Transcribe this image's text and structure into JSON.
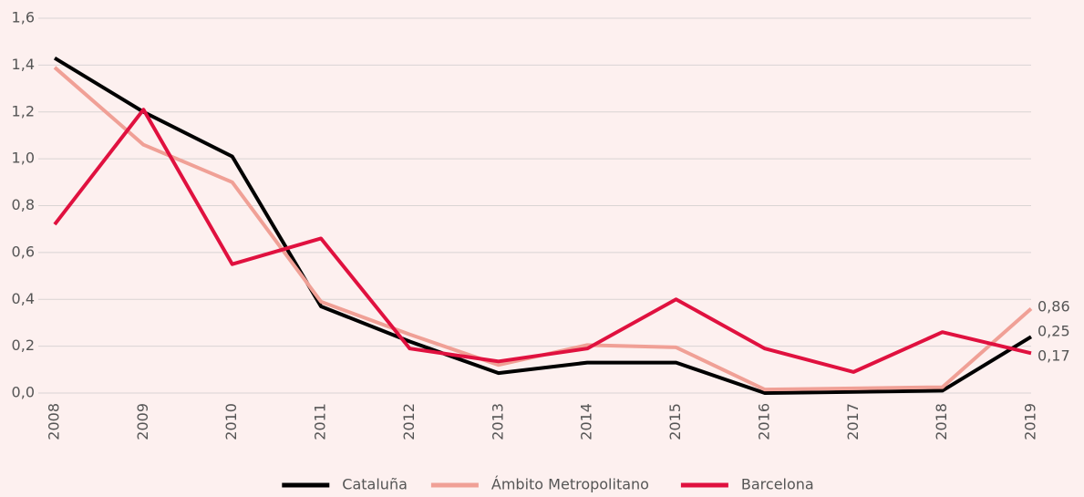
{
  "chart_data": {
    "type": "line",
    "categories": [
      "2008",
      "2009",
      "2010",
      "2011",
      "2012",
      "2013",
      "2014",
      "2015",
      "2016",
      "2017",
      "2018",
      "2019"
    ],
    "series": [
      {
        "name": "Cataluña",
        "color": "#000000",
        "values": [
          1.43,
          1.2,
          1.01,
          0.37,
          0.22,
          0.085,
          0.13,
          0.13,
          0.0,
          0.005,
          0.01,
          0.24
        ]
      },
      {
        "name": "Ámbito Metropolitano",
        "color": "#f0a096",
        "values": [
          1.39,
          1.06,
          0.9,
          0.39,
          0.25,
          0.12,
          0.205,
          0.195,
          0.015,
          0.02,
          0.025,
          0.36
        ]
      },
      {
        "name": "Barcelona",
        "color": "#e0113f",
        "values": [
          0.72,
          1.21,
          0.55,
          0.66,
          0.19,
          0.135,
          0.19,
          0.4,
          0.19,
          0.09,
          0.26,
          0.17
        ]
      }
    ],
    "annotations": [
      "0,86",
      "0,25",
      "0,17"
    ],
    "ylim": [
      0,
      1.6
    ],
    "yticks": [
      {
        "value": 0,
        "label": "0,0"
      },
      {
        "value": 0.2,
        "label": "0,2"
      },
      {
        "value": 0.4,
        "label": "0,4"
      },
      {
        "value": 0.6,
        "label": "0,6"
      },
      {
        "value": 0.8,
        "label": "0,8"
      },
      {
        "value": 1.0,
        "label": "1,0"
      },
      {
        "value": 1.2,
        "label": "1,2"
      },
      {
        "value": 1.4,
        "label": "1,4"
      },
      {
        "value": 1.6,
        "label": "1,6"
      }
    ],
    "grid": true,
    "legend": "bottom"
  }
}
